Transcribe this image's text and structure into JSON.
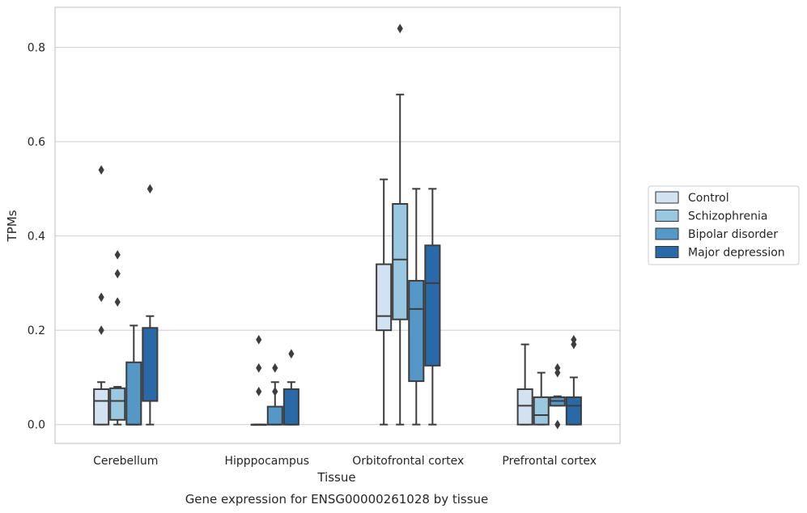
{
  "chart_data": {
    "type": "box",
    "title": "",
    "caption": "Gene expression for ENSG00000261028 by tissue",
    "xlabel": "Tissue",
    "ylabel": "TPMs",
    "ylim": [
      -0.04,
      0.885
    ],
    "yticks": [
      0.0,
      0.2,
      0.4,
      0.6,
      0.8
    ],
    "ytick_labels": [
      "0.0",
      "0.2",
      "0.4",
      "0.6",
      "0.8"
    ],
    "grid": "horizontal",
    "legend_position": "right",
    "categories": [
      "Cerebellum",
      "Hipppocampus",
      "Orbitofrontal cortex",
      "Prefrontal cortex"
    ],
    "series": [
      {
        "name": "Control",
        "color": "#d2e2f1",
        "boxes": [
          {
            "min": 0.0,
            "q1": 0.0,
            "median": 0.05,
            "q3": 0.075,
            "max": 0.09,
            "outliers": [
              0.2,
              0.27,
              0.54
            ]
          },
          null,
          {
            "min": 0.0,
            "q1": 0.2,
            "median": 0.23,
            "q3": 0.34,
            "max": 0.52,
            "outliers": []
          },
          {
            "min": 0.0,
            "q1": 0.0,
            "median": 0.04,
            "q3": 0.075,
            "max": 0.17,
            "outliers": []
          }
        ]
      },
      {
        "name": "Schizophrenia",
        "color": "#9ac8e0",
        "boxes": [
          {
            "min": 0.0,
            "q1": 0.01,
            "median": 0.05,
            "q3": 0.077,
            "max": 0.08,
            "outliers": [
              0.26,
              0.32,
              0.36
            ]
          },
          {
            "min": 0.0,
            "q1": 0.0,
            "median": 0.0,
            "q3": 0.0,
            "max": 0.0,
            "outliers": [
              0.07,
              0.12,
              0.18
            ]
          },
          {
            "min": 0.0,
            "q1": 0.223,
            "median": 0.35,
            "q3": 0.468,
            "max": 0.7,
            "outliers": [
              0.84
            ]
          },
          {
            "min": 0.0,
            "q1": 0.0,
            "median": 0.02,
            "q3": 0.058,
            "max": 0.11,
            "outliers": []
          }
        ]
      },
      {
        "name": "Bipolar disorder",
        "color": "#5597c7",
        "boxes": [
          {
            "min": 0.0,
            "q1": 0.0,
            "median": 0.0,
            "q3": 0.132,
            "max": 0.21,
            "outliers": []
          },
          {
            "min": 0.0,
            "q1": 0.0,
            "median": 0.0,
            "q3": 0.038,
            "max": 0.09,
            "outliers": [
              0.07,
              0.12
            ]
          },
          {
            "min": 0.0,
            "q1": 0.092,
            "median": 0.245,
            "q3": 0.305,
            "max": 0.5,
            "outliers": []
          },
          {
            "min": 0.04,
            "q1": 0.04,
            "median": 0.05,
            "q3": 0.058,
            "max": 0.06,
            "outliers": [
              0.0,
              0.11,
              0.12
            ]
          }
        ]
      },
      {
        "name": "Major depression",
        "color": "#2a69a8",
        "boxes": [
          {
            "min": 0.0,
            "q1": 0.05,
            "median": 0.05,
            "q3": 0.205,
            "max": 0.23,
            "outliers": [
              0.5
            ]
          },
          {
            "min": 0.0,
            "q1": 0.0,
            "median": 0.0,
            "q3": 0.075,
            "max": 0.09,
            "outliers": [
              0.15
            ]
          },
          {
            "min": 0.0,
            "q1": 0.125,
            "median": 0.3,
            "q3": 0.38,
            "max": 0.5,
            "outliers": []
          },
          {
            "min": 0.0,
            "q1": 0.0,
            "median": 0.04,
            "q3": 0.058,
            "max": 0.1,
            "outliers": [
              0.17,
              0.18
            ]
          }
        ]
      }
    ]
  },
  "colors": {
    "line": "#3d3d3d",
    "grid": "#d4d4d4",
    "frame": "#cccccc"
  }
}
